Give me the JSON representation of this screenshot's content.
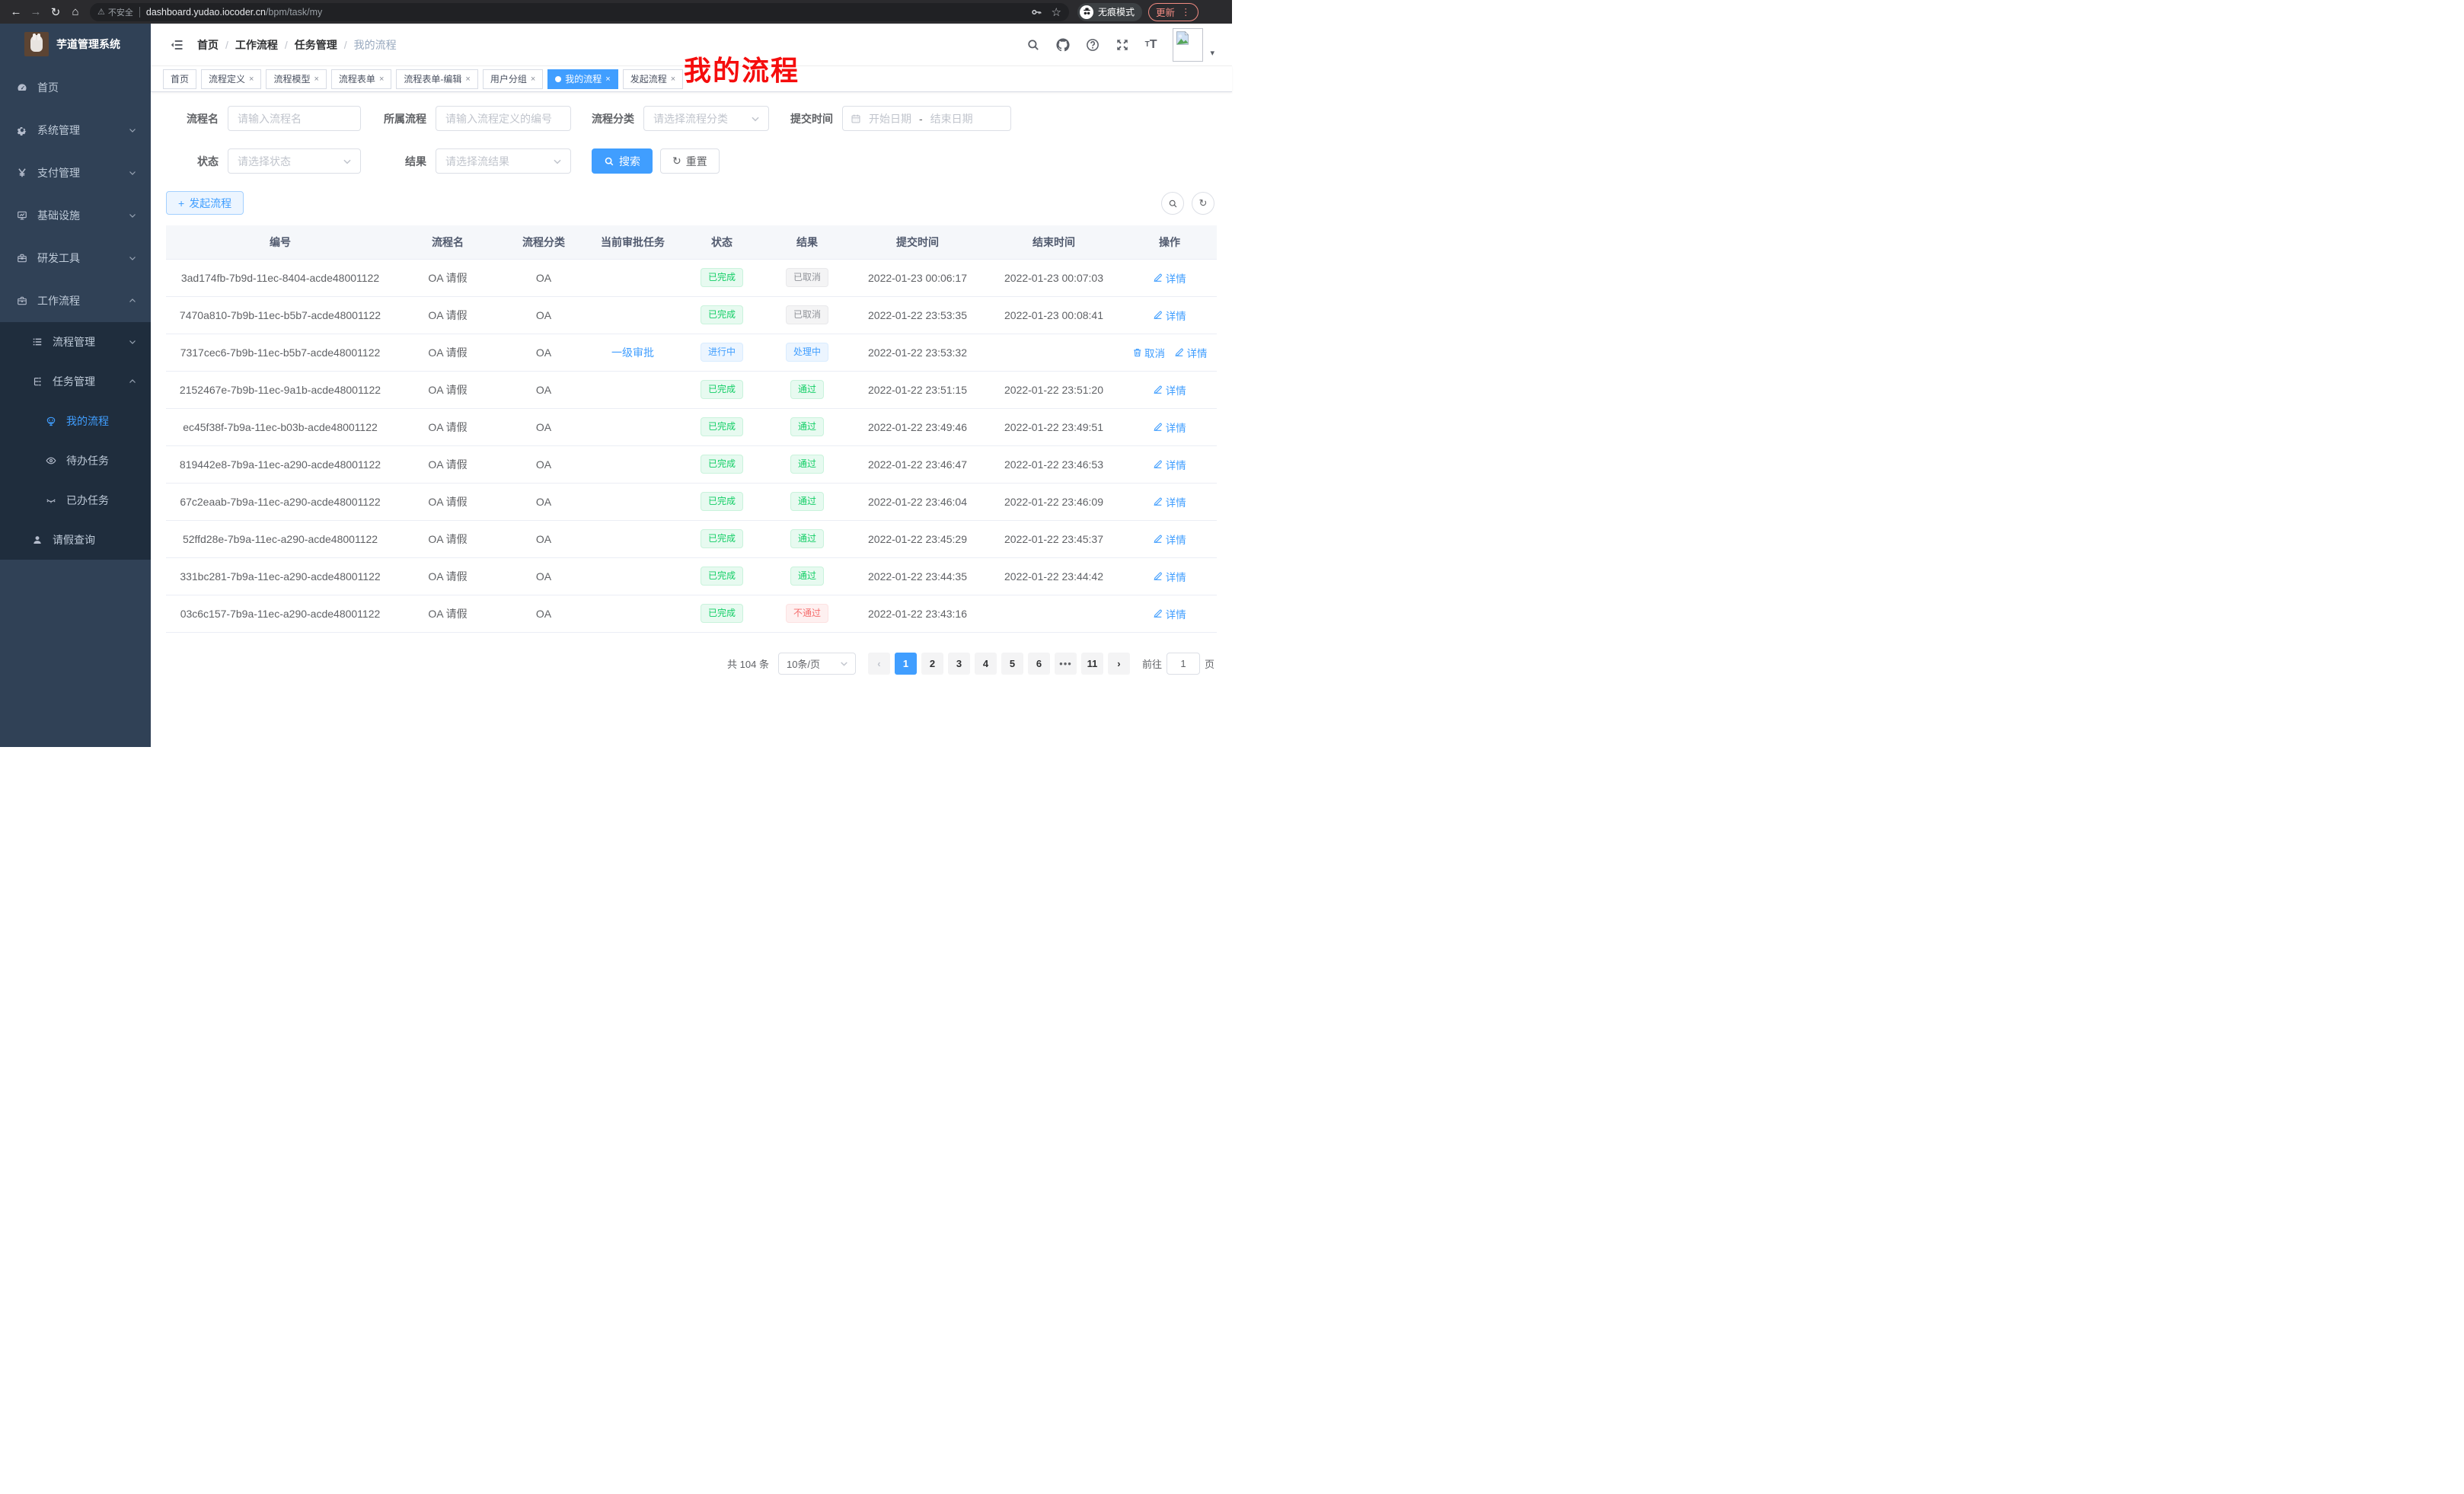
{
  "browser": {
    "security_label": "不安全",
    "url_domain": "dashboard.yudao.iocoder.cn",
    "url_path": "/bpm/task/my",
    "incognito_label": "无痕模式",
    "update_label": "更新"
  },
  "sidebar": {
    "logo_title": "芋道管理系统",
    "items": [
      {
        "key": "home",
        "icon": "dashboard-icon",
        "label": "首页",
        "level": 1
      },
      {
        "key": "system",
        "icon": "gear-icon",
        "label": "系统管理",
        "level": 1,
        "chevron": "down"
      },
      {
        "key": "payment",
        "icon": "yen-icon",
        "label": "支付管理",
        "level": 1,
        "chevron": "down"
      },
      {
        "key": "infra",
        "icon": "monitor-icon",
        "label": "基础设施",
        "level": 1,
        "chevron": "down"
      },
      {
        "key": "devtools",
        "icon": "toolbox-icon",
        "label": "研发工具",
        "level": 1,
        "chevron": "down"
      },
      {
        "key": "workflow",
        "icon": "briefcase-icon",
        "label": "工作流程",
        "level": 1,
        "chevron": "up"
      },
      {
        "key": "process-mgmt",
        "icon": "list-icon",
        "label": "流程管理",
        "level": 2,
        "chevron": "down"
      },
      {
        "key": "task-mgmt",
        "icon": "tree-icon",
        "label": "任务管理",
        "level": 2,
        "chevron": "up"
      },
      {
        "key": "my-process",
        "icon": "robot-icon",
        "label": "我的流程",
        "level": 3,
        "active": true
      },
      {
        "key": "todo-task",
        "icon": "eye-icon",
        "label": "待办任务",
        "level": 3
      },
      {
        "key": "done-task",
        "icon": "eye-closed-icon",
        "label": "已办任务",
        "level": 3
      },
      {
        "key": "leave-query",
        "icon": "user-icon",
        "label": "请假查询",
        "level": 2
      }
    ]
  },
  "navbar": {
    "breadcrumb": [
      "首页",
      "工作流程",
      "任务管理",
      "我的流程"
    ]
  },
  "annotation": {
    "text": "我的流程"
  },
  "tabs": [
    {
      "label": "首页",
      "closable": false
    },
    {
      "label": "流程定义",
      "closable": true
    },
    {
      "label": "流程模型",
      "closable": true
    },
    {
      "label": "流程表单",
      "closable": true
    },
    {
      "label": "流程表单-编辑",
      "closable": true
    },
    {
      "label": "用户分组",
      "closable": true
    },
    {
      "label": "我的流程",
      "closable": true,
      "active": true
    },
    {
      "label": "发起流程",
      "closable": true
    }
  ],
  "filters": {
    "process_name_label": "流程名",
    "process_name_placeholder": "请输入流程名",
    "owner_process_label": "所属流程",
    "owner_process_placeholder": "请输入流程定义的编号",
    "category_label": "流程分类",
    "category_placeholder": "请选择流程分类",
    "submit_time_label": "提交时间",
    "start_date_placeholder": "开始日期",
    "date_separator": "-",
    "end_date_placeholder": "结束日期",
    "status_label": "状态",
    "status_placeholder": "请选择状态",
    "result_label": "结果",
    "result_placeholder": "请选择流结果",
    "search_button": "搜索",
    "reset_button": "重置"
  },
  "toolbar": {
    "create_button": "发起流程"
  },
  "table": {
    "columns": [
      "编号",
      "流程名",
      "流程分类",
      "当前审批任务",
      "状态",
      "结果",
      "提交时间",
      "结束时间",
      "操作"
    ],
    "rows": [
      {
        "id": "3ad174fb-7b9d-11ec-8404-acde48001122",
        "name": "OA 请假",
        "category": "OA",
        "task": "",
        "status": {
          "text": "已完成",
          "type": "success"
        },
        "result": {
          "text": "已取消",
          "type": "info"
        },
        "submit_time": "2022-01-23 00:06:17",
        "end_time": "2022-01-23 00:07:03",
        "actions": [
          {
            "label": "详情",
            "icon": "edit-icon"
          }
        ]
      },
      {
        "id": "7470a810-7b9b-11ec-b5b7-acde48001122",
        "name": "OA 请假",
        "category": "OA",
        "task": "",
        "status": {
          "text": "已完成",
          "type": "success"
        },
        "result": {
          "text": "已取消",
          "type": "info"
        },
        "submit_time": "2022-01-22 23:53:35",
        "end_time": "2022-01-23 00:08:41",
        "actions": [
          {
            "label": "详情",
            "icon": "edit-icon"
          }
        ]
      },
      {
        "id": "7317cec6-7b9b-11ec-b5b7-acde48001122",
        "name": "OA 请假",
        "category": "OA",
        "task": "一级审批",
        "status": {
          "text": "进行中",
          "type": "primary"
        },
        "result": {
          "text": "处理中",
          "type": "primary"
        },
        "submit_time": "2022-01-22 23:53:32",
        "end_time": "",
        "actions": [
          {
            "label": "取消",
            "icon": "trash-icon"
          },
          {
            "label": "详情",
            "icon": "edit-icon"
          }
        ]
      },
      {
        "id": "2152467e-7b9b-11ec-9a1b-acde48001122",
        "name": "OA 请假",
        "category": "OA",
        "task": "",
        "status": {
          "text": "已完成",
          "type": "success"
        },
        "result": {
          "text": "通过",
          "type": "success"
        },
        "submit_time": "2022-01-22 23:51:15",
        "end_time": "2022-01-22 23:51:20",
        "actions": [
          {
            "label": "详情",
            "icon": "edit-icon"
          }
        ]
      },
      {
        "id": "ec45f38f-7b9a-11ec-b03b-acde48001122",
        "name": "OA 请假",
        "category": "OA",
        "task": "",
        "status": {
          "text": "已完成",
          "type": "success"
        },
        "result": {
          "text": "通过",
          "type": "success"
        },
        "submit_time": "2022-01-22 23:49:46",
        "end_time": "2022-01-22 23:49:51",
        "actions": [
          {
            "label": "详情",
            "icon": "edit-icon"
          }
        ]
      },
      {
        "id": "819442e8-7b9a-11ec-a290-acde48001122",
        "name": "OA 请假",
        "category": "OA",
        "task": "",
        "status": {
          "text": "已完成",
          "type": "success"
        },
        "result": {
          "text": "通过",
          "type": "success"
        },
        "submit_time": "2022-01-22 23:46:47",
        "end_time": "2022-01-22 23:46:53",
        "actions": [
          {
            "label": "详情",
            "icon": "edit-icon"
          }
        ]
      },
      {
        "id": "67c2eaab-7b9a-11ec-a290-acde48001122",
        "name": "OA 请假",
        "category": "OA",
        "task": "",
        "status": {
          "text": "已完成",
          "type": "success"
        },
        "result": {
          "text": "通过",
          "type": "success"
        },
        "submit_time": "2022-01-22 23:46:04",
        "end_time": "2022-01-22 23:46:09",
        "actions": [
          {
            "label": "详情",
            "icon": "edit-icon"
          }
        ]
      },
      {
        "id": "52ffd28e-7b9a-11ec-a290-acde48001122",
        "name": "OA 请假",
        "category": "OA",
        "task": "",
        "status": {
          "text": "已完成",
          "type": "success"
        },
        "result": {
          "text": "通过",
          "type": "success"
        },
        "submit_time": "2022-01-22 23:45:29",
        "end_time": "2022-01-22 23:45:37",
        "actions": [
          {
            "label": "详情",
            "icon": "edit-icon"
          }
        ]
      },
      {
        "id": "331bc281-7b9a-11ec-a290-acde48001122",
        "name": "OA 请假",
        "category": "OA",
        "task": "",
        "status": {
          "text": "已完成",
          "type": "success"
        },
        "result": {
          "text": "通过",
          "type": "success"
        },
        "submit_time": "2022-01-22 23:44:35",
        "end_time": "2022-01-22 23:44:42",
        "actions": [
          {
            "label": "详情",
            "icon": "edit-icon"
          }
        ]
      },
      {
        "id": "03c6c157-7b9a-11ec-a290-acde48001122",
        "name": "OA 请假",
        "category": "OA",
        "task": "",
        "status": {
          "text": "已完成",
          "type": "success"
        },
        "result": {
          "text": "不通过",
          "type": "danger"
        },
        "submit_time": "2022-01-22 23:43:16",
        "end_time": "",
        "actions": [
          {
            "label": "详情",
            "icon": "edit-icon"
          }
        ]
      }
    ]
  },
  "pagination": {
    "total_text": "共 104 条",
    "page_size": "10条/页",
    "pages": [
      "1",
      "2",
      "3",
      "4",
      "5",
      "6",
      "...",
      "11"
    ],
    "active_page": "1",
    "goto_label": "前往",
    "goto_value": "1",
    "goto_suffix": "页"
  },
  "colors": {
    "accent": "#409eff",
    "success": "#13ce66",
    "danger": "#f56c6c",
    "info": "#909399"
  }
}
